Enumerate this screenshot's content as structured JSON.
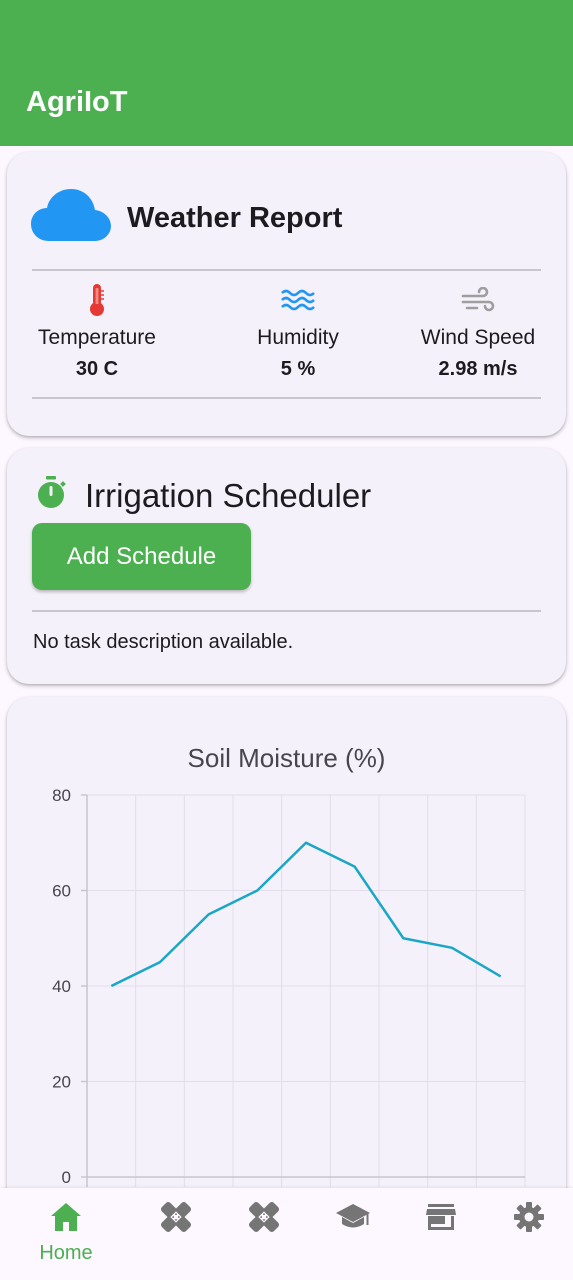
{
  "app": {
    "title": "AgriIoT"
  },
  "weather": {
    "title": "Weather Report",
    "icon": "cloud-icon",
    "stats": [
      {
        "label": "Temperature",
        "value": "30 C",
        "icon": "thermometer-icon",
        "color": "#e53935"
      },
      {
        "label": "Humidity",
        "value": "5 %",
        "icon": "water-waves-icon",
        "color": "#2196f3"
      },
      {
        "label": "Wind Speed",
        "value": "2.98 m/s",
        "icon": "wind-icon",
        "color": "#9e9e9e"
      }
    ]
  },
  "irrigation": {
    "title": "Irrigation Scheduler",
    "icon": "timer-icon",
    "add_button": "Add Schedule",
    "description": "No task description available."
  },
  "chart_data": {
    "type": "line",
    "title": "Soil Moisture (%)",
    "x": [
      0,
      1,
      2,
      3,
      4,
      5,
      6,
      7,
      8
    ],
    "series": [
      {
        "values": [
          40,
          45,
          55,
          60,
          70,
          65,
          50,
          48,
          42
        ],
        "color": "#1aa7c6"
      }
    ],
    "ylim": [
      0,
      80
    ],
    "yticks": [
      0,
      20,
      40,
      60,
      80
    ],
    "grid": true
  },
  "colors": {
    "accent": "#4caf50",
    "card": "#f5f1fa",
    "inactive_icon": "#757575"
  },
  "bottom_nav": {
    "items": [
      {
        "label": "Home",
        "icon": "home-icon",
        "active": true
      },
      {
        "label": "",
        "icon": "bandage-icon",
        "active": false
      },
      {
        "label": "",
        "icon": "bandage-icon",
        "active": false
      },
      {
        "label": "",
        "icon": "graduation-cap-icon",
        "active": false
      },
      {
        "label": "",
        "icon": "store-icon",
        "active": false
      },
      {
        "label": "",
        "icon": "gear-icon",
        "active": false
      }
    ]
  }
}
